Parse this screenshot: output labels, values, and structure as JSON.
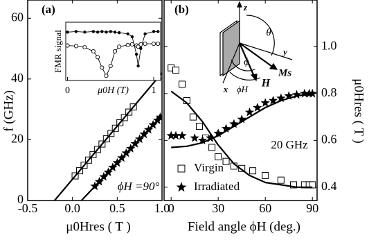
{
  "chart_data": [
    {
      "type": "scatter",
      "annotations": [
        "(a)",
        "ϕH =90°"
      ],
      "xlabel": "μ0Hres ( T )",
      "ylabel": "f (GHz)",
      "xlim": [
        -0.5,
        1.0
      ],
      "ylim": [
        0,
        66
      ],
      "xticks": [
        -0.5,
        {
          "value": 0,
          "label": "0.0"
        },
        0.5,
        {
          "value": 1,
          "label": "1.0"
        }
      ],
      "yticks": [
        0,
        20,
        40,
        60
      ],
      "series": [
        {
          "marker": "square",
          "color": "#000000",
          "x": [
            0.03,
            0.08,
            0.13,
            0.18,
            0.23,
            0.28,
            0.33,
            0.38,
            0.43,
            0.48,
            0.53,
            0.58,
            0.63,
            0.68
          ],
          "values": [
            8.1,
            9.8,
            11.6,
            13.3,
            15.1,
            16.8,
            18.6,
            20.3,
            22.1,
            23.8,
            25.6,
            27.3,
            29.1,
            30.8
          ]
        },
        {
          "marker": "star",
          "color": "#000000",
          "x": [
            0.25,
            0.3,
            0.35,
            0.4,
            0.45,
            0.5,
            0.55,
            0.6,
            0.65,
            0.7,
            0.75,
            0.8,
            0.85,
            0.9,
            0.95,
            0.98
          ],
          "values": [
            4.7,
            6.2,
            7.8,
            9.3,
            10.9,
            12.4,
            14.0,
            15.6,
            17.1,
            18.7,
            20.2,
            21.8,
            23.3,
            24.9,
            26.4,
            27.4
          ]
        },
        {
          "marker": "none",
          "color": "#000000",
          "x": [
            -0.2,
            1.0
          ],
          "values": [
            0,
            42
          ]
        },
        {
          "marker": "none",
          "color": "#000000",
          "x": [
            0.1,
            1.0
          ],
          "values": [
            0,
            28
          ]
        }
      ]
    },
    {
      "type": "line",
      "xlabel": "μ0H (T)",
      "ylabel": "FMR signal",
      "xlim": [
        -0.02,
        1.08
      ],
      "ylim": [
        0,
        1
      ],
      "xticks": [
        0,
        1
      ],
      "series": [
        {
          "marker": "dot",
          "color": "#000000",
          "x": [
            0.0,
            0.1,
            0.2,
            0.3,
            0.35,
            0.4,
            0.45,
            0.5,
            0.55,
            0.6,
            0.7,
            0.75,
            0.8,
            0.82,
            0.85,
            0.9,
            1.0,
            1.05
          ],
          "values": [
            0.83,
            0.84,
            0.83,
            0.84,
            0.83,
            0.84,
            0.83,
            0.84,
            0.83,
            0.82,
            0.8,
            0.75,
            0.45,
            0.25,
            0.55,
            0.8,
            0.84,
            0.84
          ]
        },
        {
          "marker": "circle",
          "color": "#000000",
          "x": [
            0.0,
            0.1,
            0.2,
            0.3,
            0.35,
            0.4,
            0.45,
            0.5,
            0.55,
            0.6,
            0.7,
            0.75,
            0.8,
            0.82,
            0.85,
            0.9,
            1.0,
            1.05
          ],
          "values": [
            0.6,
            0.59,
            0.57,
            0.5,
            0.4,
            0.22,
            0.08,
            0.25,
            0.5,
            0.58,
            0.61,
            0.62,
            0.6,
            0.58,
            0.62,
            0.63,
            0.63,
            0.63
          ]
        }
      ]
    },
    {
      "type": "scatter",
      "annotations": [
        "(b)",
        "z",
        "θ",
        "y",
        "ϕ",
        "Ms",
        "H",
        "x",
        "ϕH",
        "20 GHz"
      ],
      "xlabel": "Field angle ϕH (deg.)",
      "ylabel": "μ0Hres ( T )",
      "yaxis": "right",
      "xlim": [
        -4.5,
        93
      ],
      "ylim": [
        0.343,
        1.2
      ],
      "xticks": [
        0,
        30,
        60,
        90
      ],
      "yticks": [
        0.4,
        0.6,
        0.8,
        {
          "value": 1,
          "label": "1.0"
        }
      ],
      "legend": "lower left",
      "series": [
        {
          "name": "Virgin",
          "marker": "square",
          "color": "#000000",
          "x": [
            0,
            3,
            7,
            10,
            14,
            18,
            22,
            26,
            30,
            35,
            40,
            45,
            52,
            60,
            70,
            78,
            85,
            88,
            90
          ],
          "values": [
            0.91,
            0.9,
            0.84,
            0.77,
            0.7,
            0.66,
            0.61,
            0.57,
            0.53,
            0.51,
            0.49,
            0.48,
            0.47,
            0.45,
            0.43,
            0.41,
            0.41,
            0.41,
            0.41
          ]
        },
        {
          "name": "Irradiated",
          "marker": "star",
          "color": "#000000",
          "x": [
            0,
            3,
            7,
            15,
            20,
            25,
            30,
            35,
            40,
            45,
            50,
            55,
            60,
            65,
            70,
            75,
            80,
            85,
            88,
            90
          ],
          "values": [
            0.62,
            0.62,
            0.62,
            0.61,
            0.6,
            0.61,
            0.63,
            0.65,
            0.67,
            0.69,
            0.72,
            0.74,
            0.76,
            0.77,
            0.78,
            0.79,
            0.795,
            0.8,
            0.8,
            0.8
          ]
        },
        {
          "marker": "none",
          "color": "#000000",
          "x": [
            0,
            10,
            20,
            30,
            40,
            50,
            60,
            70,
            80,
            90
          ],
          "values": [
            0.81,
            0.76,
            0.68,
            0.58,
            0.5,
            0.45,
            0.42,
            0.41,
            0.4,
            0.4
          ]
        },
        {
          "marker": "none",
          "color": "#000000",
          "x": [
            0,
            10,
            20,
            30,
            40,
            50,
            60,
            70,
            80,
            90
          ],
          "values": [
            0.57,
            0.575,
            0.59,
            0.62,
            0.66,
            0.7,
            0.74,
            0.77,
            0.79,
            0.8
          ]
        }
      ]
    }
  ]
}
